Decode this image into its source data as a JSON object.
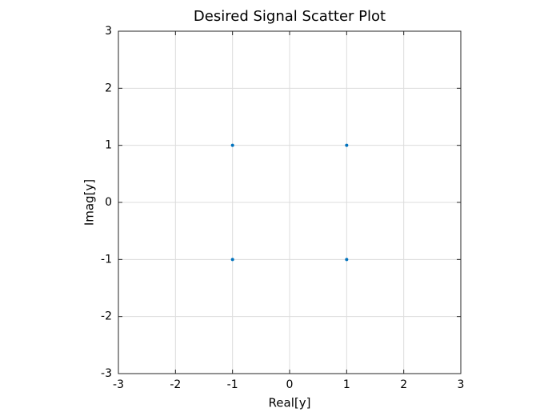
{
  "chart_data": {
    "type": "scatter",
    "title": "Desired Signal Scatter Plot",
    "xlabel": "Real[y]",
    "ylabel": "Imag[y]",
    "x": [
      1,
      -1,
      -1,
      1
    ],
    "series": [
      {
        "color": "#0072bd",
        "values": [
          1,
          1,
          -1,
          -1
        ]
      }
    ],
    "xlim": [
      -3,
      3
    ],
    "xticks": [
      -3,
      -2,
      -1,
      0,
      1,
      2,
      3
    ],
    "ylim": [
      -3,
      3
    ],
    "yticks": [
      -3,
      -2,
      -1,
      0,
      1,
      2,
      3
    ],
    "grid": true
  }
}
